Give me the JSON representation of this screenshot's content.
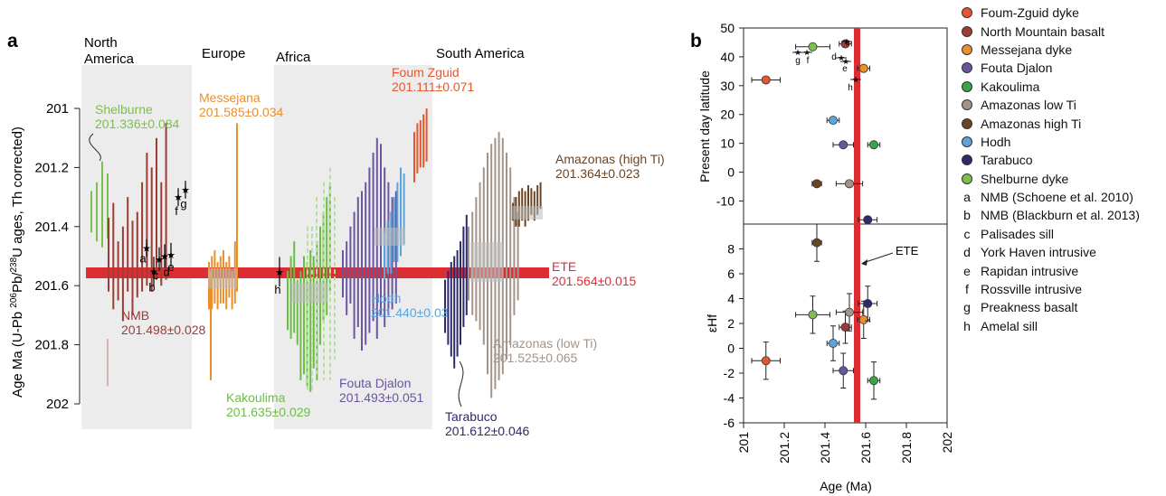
{
  "chart_data": [
    {
      "type": "scatter",
      "panel_label": "a",
      "ylabel": "Age Ma (U-Pb 206Pb/238U ages, Th corrected)",
      "ylim": [
        202.0,
        201.0
      ],
      "yticks": [
        201,
        201.2,
        201.4,
        201.6,
        201.8,
        202
      ],
      "regions": [
        {
          "name": "North America",
          "name_lines": [
            "North",
            "America"
          ]
        },
        {
          "name": "Europe"
        },
        {
          "name": "Africa"
        },
        {
          "name": "South America"
        }
      ],
      "labels": [
        {
          "name": "Shelburne",
          "age": "201.336±0.084",
          "color": "#7cbf4a"
        },
        {
          "name": "NMB",
          "age": "201.498±0.028",
          "color": "#9e3b35"
        },
        {
          "name": "Messejana",
          "age": "201.585±0.034",
          "color": "#e98f2c"
        },
        {
          "name": "Kakoulima",
          "age": "201.635±0.029",
          "color": "#6dbd45"
        },
        {
          "name": "Fouta Djalon",
          "age": "201.493±0.051",
          "color": "#6a559f"
        },
        {
          "name": "Hodh",
          "age": "201.440±0.03",
          "color": "#5ca4dc"
        },
        {
          "name": "Foum Zguid",
          "age": "201.111±0.071",
          "color": "#e4572e"
        },
        {
          "name": "Tarabuco",
          "age": "201.612±0.046",
          "color": "#2d2a6b"
        },
        {
          "name": "Amazonas (low Ti)",
          "age": "201.525±0.065",
          "color": "#a2948a"
        },
        {
          "name": "Amazonas (high Ti)",
          "age": "201.364±0.023",
          "color": "#6b4423"
        },
        {
          "name": "ETE",
          "age": "201.564±0.015",
          "color": "#dc2d33"
        }
      ],
      "point_letters": [
        "a",
        "b",
        "c",
        "d",
        "e",
        "f",
        "g",
        "h"
      ],
      "ete": 201.564
    },
    {
      "type": "scatter",
      "panel_label": "b",
      "xlabel": "Age (Ma)",
      "xlim": [
        201.0,
        202.0
      ],
      "xticks": [
        "201",
        "201.2",
        "201.4",
        "201.6",
        "201.8",
        "202"
      ],
      "top": {
        "ylabel": "Present day latitude",
        "ylim": [
          -18,
          50
        ],
        "yticks": [
          -10,
          0,
          10,
          20,
          30,
          40,
          50
        ],
        "points": [
          {
            "name": "Foum-Zguid dyke",
            "x": 201.11,
            "y": 32,
            "xerr": 0.07
          },
          {
            "name": "North Mountain basalt",
            "x": 201.5,
            "y": 44.5,
            "xerr": 0.03
          },
          {
            "name": "Messejana dyke",
            "x": 201.59,
            "y": 36,
            "xerr": 0.03
          },
          {
            "name": "Fouta Djalon",
            "x": 201.49,
            "y": 9.5,
            "xerr": 0.05
          },
          {
            "name": "Kakoulima",
            "x": 201.64,
            "y": 9.5,
            "xerr": 0.03
          },
          {
            "name": "Amazonas low Ti",
            "x": 201.52,
            "y": -4,
            "xerr": 0.065
          },
          {
            "name": "Amazonas high Ti",
            "x": 201.36,
            "y": -4,
            "xerr": 0.023
          },
          {
            "name": "Hodh",
            "x": 201.44,
            "y": 18,
            "xerr": 0.03
          },
          {
            "name": "Tarabuco",
            "x": 201.61,
            "y": -16.5,
            "xerr": 0.046
          },
          {
            "name": "Shelburne dyke",
            "x": 201.34,
            "y": 43.5,
            "xerr": 0.084
          }
        ]
      },
      "bottom": {
        "ylabel": "εHf",
        "ylim": [
          -6,
          10
        ],
        "yticks": [
          -6,
          -4,
          -2,
          0,
          2,
          4,
          6,
          8
        ],
        "points": [
          {
            "name": "Foum-Zguid dyke",
            "x": 201.11,
            "y": -1.0,
            "xerr": 0.07,
            "yerr": 1.5
          },
          {
            "name": "North Mountain basalt",
            "x": 201.5,
            "y": 1.7,
            "xerr": 0.03,
            "yerr": 1.3
          },
          {
            "name": "Messejana dyke",
            "x": 201.59,
            "y": 2.3,
            "xerr": 0.03,
            "yerr": 1.5
          },
          {
            "name": "Fouta Djalon",
            "x": 201.49,
            "y": -1.8,
            "xerr": 0.05,
            "yerr": 1.4
          },
          {
            "name": "Kakoulima",
            "x": 201.64,
            "y": -2.6,
            "xerr": 0.03,
            "yerr": 1.5
          },
          {
            "name": "Amazonas low Ti",
            "x": 201.52,
            "y": 2.9,
            "xerr": 0.065,
            "yerr": 1.5
          },
          {
            "name": "Amazonas high Ti",
            "x": 201.36,
            "y": 8.5,
            "xerr": 0.023,
            "yerr": 1.5
          },
          {
            "name": "Hodh",
            "x": 201.44,
            "y": 0.4,
            "xerr": 0.03,
            "yerr": 1.4
          },
          {
            "name": "Tarabuco",
            "x": 201.61,
            "y": 3.6,
            "xerr": 0.046,
            "yerr": 1.4
          },
          {
            "name": "Shelburne dyke",
            "x": 201.34,
            "y": 2.7,
            "xerr": 0.084,
            "yerr": 1.5
          }
        ]
      },
      "ete": 201.564,
      "ete_label": "ETE"
    }
  ],
  "legend": {
    "series": [
      {
        "label": "Foum-Zguid dyke",
        "color": "#e4572e"
      },
      {
        "label": "North Mountain basalt",
        "color": "#9e3b35"
      },
      {
        "label": "Messejana dyke",
        "color": "#e98f2c"
      },
      {
        "label": "Fouta Djalon",
        "color": "#6a559f"
      },
      {
        "label": "Kakoulima",
        "color": "#3aa348"
      },
      {
        "label": "Amazonas low Ti",
        "color": "#a2948a"
      },
      {
        "label": "Amazonas high Ti",
        "color": "#6b4423"
      },
      {
        "label": "Hodh",
        "color": "#5ca4dc"
      },
      {
        "label": "Tarabuco",
        "color": "#2d2a6b"
      },
      {
        "label": "Shelburne dyke",
        "color": "#7cbf4a"
      }
    ],
    "refs": [
      {
        "letter": "a",
        "text": "NMB (Schoene et al. 2010)"
      },
      {
        "letter": "b",
        "text": "NMB (Blackburn et al. 2013)"
      },
      {
        "letter": "c",
        "text": "Palisades sill"
      },
      {
        "letter": "d",
        "text": "York Haven intrusive"
      },
      {
        "letter": "e",
        "text": "Rapidan intrusive"
      },
      {
        "letter": "f",
        "text": "Rossville intrusive"
      },
      {
        "letter": "g",
        "text": "Preakness basalt"
      },
      {
        "letter": "h",
        "text": "Amelal sill"
      }
    ]
  }
}
